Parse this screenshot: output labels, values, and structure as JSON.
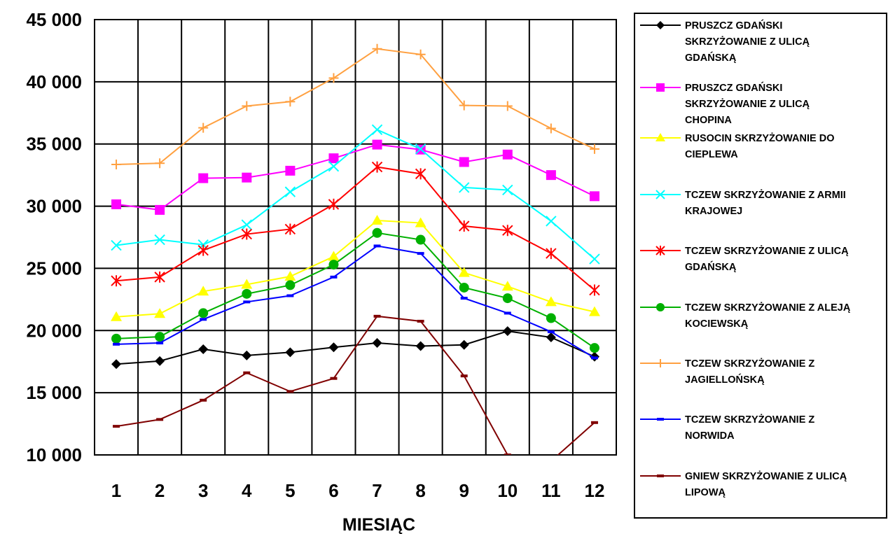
{
  "chart_data": {
    "type": "line",
    "title": "",
    "xlabel": "MIESIĄC",
    "ylabel": "",
    "categories": [
      "1",
      "2",
      "3",
      "4",
      "5",
      "6",
      "7",
      "8",
      "9",
      "10",
      "11",
      "12"
    ],
    "ylim": [
      10000,
      45000
    ],
    "y_ticks": [
      10000,
      15000,
      20000,
      25000,
      30000,
      35000,
      40000,
      45000
    ],
    "y_tick_labels": [
      "10 000",
      "15 000",
      "20 000",
      "25 000",
      "30 000",
      "35 000",
      "40 000",
      "45 000"
    ],
    "grid": true,
    "legend_position": "right",
    "series": [
      {
        "name": "PRUSZCZ GDAŃSKI SKRZYŻOWANIE Z ULICĄ GDAŃSKĄ",
        "legend_lines": [
          "PRUSZCZ GDAŃSKI",
          "SKRZYŻOWANIE Z ULICĄ",
          "GDAŃSKĄ"
        ],
        "color": "#000000",
        "marker": "diamond",
        "values": [
          17300,
          17550,
          18500,
          18000,
          18250,
          18650,
          19000,
          18750,
          18850,
          19950,
          19450,
          17900
        ]
      },
      {
        "name": "PRUSZCZ GDAŃSKI SKRZYŻOWANIE Z ULICĄ CHOPINA",
        "legend_lines": [
          "PRUSZCZ GDAŃSKI",
          "SKRZYŻOWANIE Z ULICĄ",
          "CHOPINA"
        ],
        "color": "#FF00FF",
        "marker": "square",
        "values": [
          30150,
          29700,
          32250,
          32300,
          32850,
          33850,
          34950,
          34550,
          33550,
          34150,
          32500,
          30800
        ]
      },
      {
        "name": "RUSOCIN SKRZYŻOWANIE DO CIEPLEWA",
        "legend_lines": [
          "RUSOCIN SKRZYŻOWANIE DO",
          "CIEPLEWA"
        ],
        "color": "#FFFF00",
        "marker": "triangle",
        "values": [
          21100,
          21350,
          23150,
          23700,
          24350,
          25950,
          28850,
          28650,
          24650,
          23550,
          22300,
          21500
        ]
      },
      {
        "name": "TCZEW SKRZYŻOWANIE Z ARMII KRAJOWEJ",
        "legend_lines": [
          "TCZEW SKRZYŻOWANIE Z ARMII",
          "KRAJOWEJ"
        ],
        "color": "#00FFFF",
        "marker": "x",
        "values": [
          26850,
          27300,
          26900,
          28500,
          31150,
          33200,
          36150,
          34600,
          31500,
          31300,
          28800,
          25750
        ]
      },
      {
        "name": "TCZEW SKRZYŻOWANIE Z ULICĄ GDAŃSKĄ",
        "legend_lines": [
          "TCZEW SKRZYŻOWANIE Z ULICĄ",
          "GDAŃSKĄ"
        ],
        "color": "#FF0000",
        "marker": "star",
        "values": [
          24000,
          24300,
          26450,
          27750,
          28150,
          30150,
          33150,
          32600,
          28400,
          28050,
          26200,
          23250
        ]
      },
      {
        "name": "TCZEW SKRZYŻOWANIE Z ALEJĄ KOCIEWSKĄ",
        "legend_lines": [
          "TCZEW SKRZYŻOWANIE Z ALEJĄ",
          "KOCIEWSKĄ"
        ],
        "color": "#00B000",
        "marker": "circle",
        "values": [
          19350,
          19500,
          21400,
          22950,
          23650,
          25300,
          27850,
          27300,
          23450,
          22600,
          21000,
          18600
        ]
      },
      {
        "name": "TCZEW SKRZYŻOWANIE Z JAGIELLOŃSKĄ",
        "legend_lines": [
          "TCZEW SKRZYŻOWANIE Z",
          "JAGIELLOŃSKĄ"
        ],
        "color": "#FFA040",
        "marker": "plus",
        "values": [
          33350,
          33450,
          36300,
          38050,
          38400,
          40300,
          42650,
          42200,
          38100,
          38050,
          36250,
          34600
        ]
      },
      {
        "name": "TCZEW SKRZYŻOWANIE Z NORWIDA",
        "legend_lines": [
          "TCZEW SKRZYŻOWANIE Z",
          "NORWIDA"
        ],
        "color": "#0000FF",
        "marker": "dash",
        "values": [
          18900,
          19000,
          20900,
          22300,
          22800,
          24300,
          26800,
          26200,
          22600,
          21400,
          19900,
          17800
        ]
      },
      {
        "name": "GNIEW SKRZYŻOWANIE Z ULICĄ LIPOWĄ",
        "legend_lines": [
          "GNIEW SKRZYŻOWANIE Z ULICĄ",
          "LIPOWĄ"
        ],
        "color": "#800000",
        "marker": "dash",
        "values": [
          12300,
          12850,
          14400,
          16600,
          15100,
          16150,
          21150,
          20750,
          16350,
          10000,
          9500,
          12600
        ]
      }
    ]
  }
}
